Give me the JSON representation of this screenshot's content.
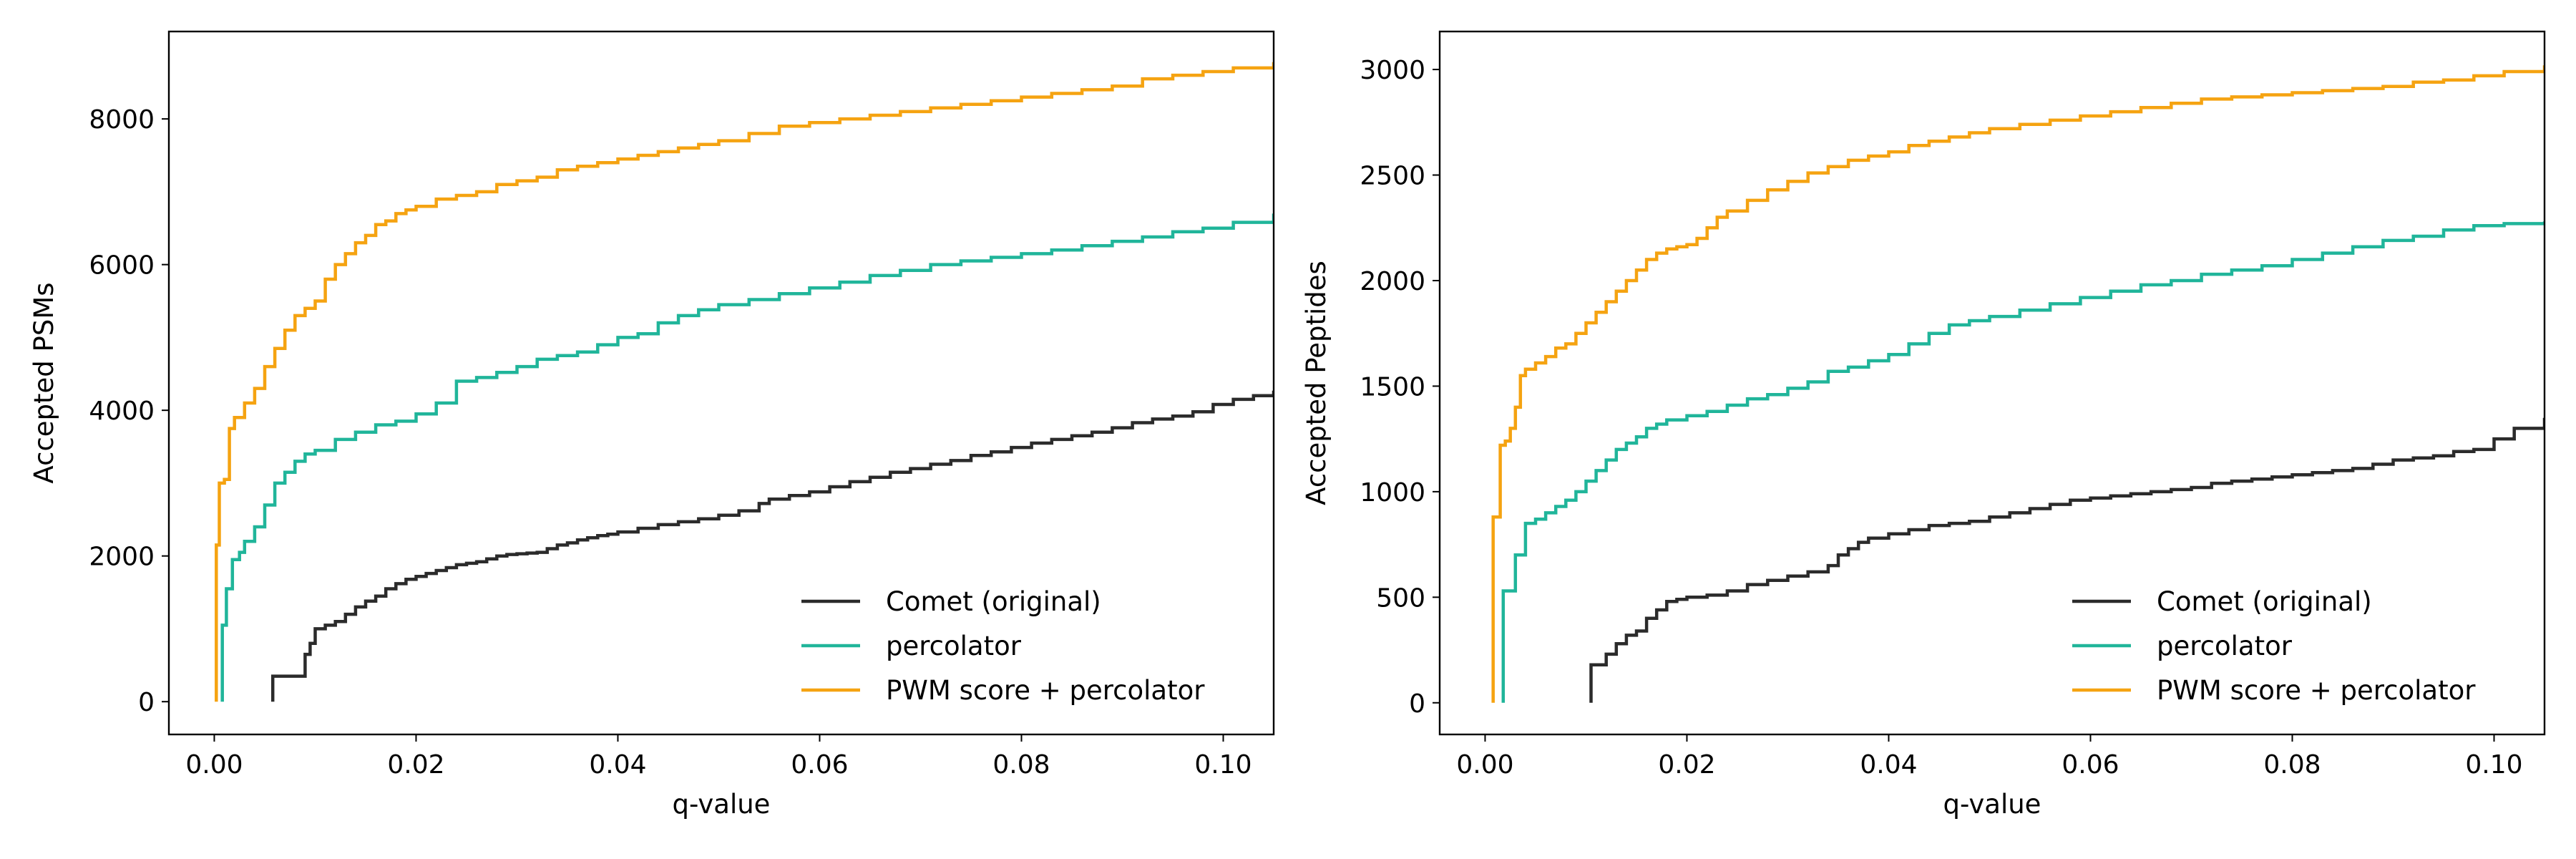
{
  "colors": {
    "comet": "#2b2b2b",
    "percolator": "#20b59a",
    "pwm": "#f5a311"
  },
  "chart_data": [
    {
      "type": "line",
      "title": "",
      "xlabel": "q-value",
      "ylabel": "Accepted PSMs",
      "xlim": [
        -0.0045,
        0.105
      ],
      "ylim": [
        -450,
        9200
      ],
      "xticks": [
        0.0,
        0.02,
        0.04,
        0.06,
        0.08,
        0.1
      ],
      "xtick_labels": [
        "0.00",
        "0.02",
        "0.04",
        "0.06",
        "0.08",
        "0.10"
      ],
      "yticks": [
        0,
        2000,
        4000,
        6000,
        8000
      ],
      "ytick_labels": [
        "0",
        "2000",
        "4000",
        "6000",
        "8000"
      ],
      "grid": false,
      "legend_position": "lower-right",
      "series": [
        {
          "name": "Comet (original)",
          "color_key": "comet",
          "step": true,
          "x": [
            0.0058,
            0.0058,
            0.0085,
            0.009,
            0.0095,
            0.01,
            0.011,
            0.012,
            0.013,
            0.014,
            0.015,
            0.016,
            0.017,
            0.018,
            0.019,
            0.02,
            0.021,
            0.022,
            0.023,
            0.024,
            0.025,
            0.026,
            0.027,
            0.028,
            0.029,
            0.03,
            0.031,
            0.032,
            0.033,
            0.034,
            0.035,
            0.036,
            0.037,
            0.038,
            0.039,
            0.04,
            0.042,
            0.044,
            0.046,
            0.048,
            0.05,
            0.052,
            0.054,
            0.055,
            0.057,
            0.059,
            0.061,
            0.063,
            0.065,
            0.067,
            0.069,
            0.071,
            0.073,
            0.075,
            0.077,
            0.079,
            0.081,
            0.083,
            0.085,
            0.087,
            0.089,
            0.091,
            0.093,
            0.095,
            0.097,
            0.099,
            0.101,
            0.103,
            0.105
          ],
          "y": [
            0,
            350,
            350,
            650,
            800,
            1000,
            1050,
            1100,
            1200,
            1300,
            1380,
            1450,
            1550,
            1620,
            1680,
            1720,
            1760,
            1800,
            1840,
            1880,
            1900,
            1920,
            1960,
            2000,
            2020,
            2030,
            2040,
            2050,
            2100,
            2150,
            2180,
            2220,
            2250,
            2280,
            2300,
            2330,
            2380,
            2430,
            2470,
            2510,
            2560,
            2620,
            2720,
            2780,
            2830,
            2880,
            2950,
            3020,
            3080,
            3150,
            3200,
            3260,
            3310,
            3380,
            3430,
            3490,
            3550,
            3600,
            3650,
            3700,
            3760,
            3830,
            3880,
            3920,
            3980,
            4080,
            4150,
            4200,
            4270
          ]
        },
        {
          "name": "percolator",
          "color_key": "percolator",
          "step": true,
          "x": [
            0.0008,
            0.0008,
            0.0012,
            0.0018,
            0.0025,
            0.003,
            0.004,
            0.005,
            0.006,
            0.007,
            0.008,
            0.009,
            0.01,
            0.012,
            0.014,
            0.016,
            0.018,
            0.02,
            0.022,
            0.024,
            0.026,
            0.028,
            0.03,
            0.032,
            0.034,
            0.036,
            0.038,
            0.04,
            0.042,
            0.044,
            0.046,
            0.048,
            0.05,
            0.053,
            0.056,
            0.059,
            0.062,
            0.065,
            0.068,
            0.071,
            0.074,
            0.077,
            0.08,
            0.083,
            0.086,
            0.089,
            0.092,
            0.095,
            0.098,
            0.101,
            0.105
          ],
          "y": [
            0,
            1050,
            1550,
            1950,
            2050,
            2200,
            2400,
            2700,
            3000,
            3150,
            3300,
            3400,
            3450,
            3600,
            3700,
            3800,
            3850,
            3950,
            4100,
            4400,
            4450,
            4520,
            4600,
            4700,
            4750,
            4800,
            4900,
            5000,
            5050,
            5200,
            5300,
            5380,
            5450,
            5520,
            5600,
            5680,
            5760,
            5850,
            5920,
            6000,
            6050,
            6100,
            6150,
            6200,
            6260,
            6320,
            6380,
            6450,
            6500,
            6580,
            6700
          ]
        },
        {
          "name": "PWM score + percolator",
          "color_key": "pwm",
          "step": true,
          "x": [
            0.0002,
            0.0002,
            0.0005,
            0.001,
            0.0015,
            0.002,
            0.003,
            0.004,
            0.005,
            0.006,
            0.007,
            0.008,
            0.009,
            0.01,
            0.011,
            0.012,
            0.013,
            0.014,
            0.015,
            0.016,
            0.017,
            0.018,
            0.019,
            0.02,
            0.022,
            0.024,
            0.026,
            0.028,
            0.03,
            0.032,
            0.034,
            0.036,
            0.038,
            0.04,
            0.042,
            0.044,
            0.046,
            0.048,
            0.05,
            0.053,
            0.056,
            0.059,
            0.062,
            0.065,
            0.068,
            0.071,
            0.074,
            0.077,
            0.08,
            0.083,
            0.086,
            0.089,
            0.092,
            0.095,
            0.098,
            0.101,
            0.105
          ],
          "y": [
            0,
            2150,
            3000,
            3050,
            3750,
            3900,
            4100,
            4300,
            4600,
            4850,
            5100,
            5300,
            5400,
            5500,
            5800,
            6000,
            6150,
            6300,
            6400,
            6550,
            6600,
            6700,
            6750,
            6800,
            6900,
            6950,
            7000,
            7100,
            7150,
            7200,
            7300,
            7350,
            7400,
            7450,
            7500,
            7550,
            7600,
            7650,
            7700,
            7800,
            7900,
            7950,
            8000,
            8050,
            8100,
            8150,
            8200,
            8250,
            8300,
            8350,
            8400,
            8450,
            8550,
            8600,
            8650,
            8700,
            8780
          ]
        }
      ]
    },
    {
      "type": "line",
      "title": "",
      "xlabel": "q-value",
      "ylabel": "Accepted Peptides",
      "xlim": [
        -0.0045,
        0.105
      ],
      "ylim": [
        -150,
        3180
      ],
      "xticks": [
        0.0,
        0.02,
        0.04,
        0.06,
        0.08,
        0.1
      ],
      "xtick_labels": [
        "0.00",
        "0.02",
        "0.04",
        "0.06",
        "0.08",
        "0.10"
      ],
      "yticks": [
        0,
        500,
        1000,
        1500,
        2000,
        2500,
        3000
      ],
      "ytick_labels": [
        "0",
        "500",
        "1000",
        "1500",
        "2000",
        "2500",
        "3000"
      ],
      "grid": false,
      "legend_position": "lower-right",
      "series": [
        {
          "name": "Comet (original)",
          "color_key": "comet",
          "step": true,
          "x": [
            0.0105,
            0.0105,
            0.012,
            0.013,
            0.014,
            0.015,
            0.016,
            0.017,
            0.018,
            0.019,
            0.02,
            0.022,
            0.024,
            0.026,
            0.028,
            0.03,
            0.032,
            0.034,
            0.035,
            0.036,
            0.037,
            0.038,
            0.04,
            0.042,
            0.044,
            0.046,
            0.048,
            0.05,
            0.052,
            0.054,
            0.056,
            0.058,
            0.06,
            0.062,
            0.064,
            0.066,
            0.068,
            0.07,
            0.072,
            0.074,
            0.076,
            0.078,
            0.08,
            0.082,
            0.084,
            0.086,
            0.088,
            0.09,
            0.092,
            0.094,
            0.096,
            0.098,
            0.1,
            0.102,
            0.105
          ],
          "y": [
            0,
            180,
            230,
            280,
            320,
            340,
            400,
            440,
            480,
            490,
            500,
            510,
            530,
            560,
            580,
            600,
            620,
            650,
            700,
            730,
            760,
            780,
            800,
            820,
            840,
            850,
            860,
            880,
            900,
            920,
            940,
            960,
            970,
            980,
            990,
            1000,
            1010,
            1020,
            1040,
            1050,
            1060,
            1070,
            1080,
            1090,
            1100,
            1110,
            1130,
            1150,
            1160,
            1170,
            1190,
            1200,
            1250,
            1300,
            1350
          ]
        },
        {
          "name": "percolator",
          "color_key": "percolator",
          "step": true,
          "x": [
            0.0018,
            0.0018,
            0.003,
            0.004,
            0.005,
            0.006,
            0.007,
            0.008,
            0.009,
            0.01,
            0.011,
            0.012,
            0.013,
            0.014,
            0.015,
            0.016,
            0.017,
            0.018,
            0.02,
            0.022,
            0.024,
            0.026,
            0.028,
            0.03,
            0.032,
            0.034,
            0.036,
            0.038,
            0.04,
            0.042,
            0.044,
            0.046,
            0.048,
            0.05,
            0.053,
            0.056,
            0.059,
            0.062,
            0.065,
            0.068,
            0.071,
            0.074,
            0.077,
            0.08,
            0.083,
            0.086,
            0.089,
            0.092,
            0.095,
            0.098,
            0.101,
            0.105
          ],
          "y": [
            0,
            530,
            700,
            850,
            870,
            900,
            930,
            960,
            1000,
            1050,
            1100,
            1150,
            1200,
            1230,
            1260,
            1300,
            1320,
            1340,
            1360,
            1380,
            1410,
            1440,
            1460,
            1490,
            1520,
            1570,
            1590,
            1620,
            1650,
            1700,
            1750,
            1790,
            1810,
            1830,
            1860,
            1890,
            1920,
            1950,
            1980,
            2000,
            2030,
            2050,
            2070,
            2100,
            2130,
            2160,
            2190,
            2210,
            2240,
            2260,
            2270,
            2280
          ]
        },
        {
          "name": "PWM score + percolator",
          "color_key": "pwm",
          "step": true,
          "x": [
            0.0008,
            0.0008,
            0.0015,
            0.002,
            0.0025,
            0.003,
            0.0035,
            0.004,
            0.005,
            0.006,
            0.007,
            0.008,
            0.009,
            0.01,
            0.011,
            0.012,
            0.013,
            0.014,
            0.015,
            0.016,
            0.017,
            0.018,
            0.019,
            0.02,
            0.021,
            0.022,
            0.023,
            0.024,
            0.026,
            0.028,
            0.03,
            0.032,
            0.034,
            0.036,
            0.038,
            0.04,
            0.042,
            0.044,
            0.046,
            0.048,
            0.05,
            0.053,
            0.056,
            0.059,
            0.062,
            0.065,
            0.068,
            0.071,
            0.074,
            0.077,
            0.08,
            0.083,
            0.086,
            0.089,
            0.092,
            0.095,
            0.098,
            0.101,
            0.105
          ],
          "y": [
            0,
            880,
            1220,
            1240,
            1300,
            1400,
            1550,
            1580,
            1610,
            1640,
            1680,
            1700,
            1750,
            1800,
            1850,
            1900,
            1950,
            2000,
            2050,
            2100,
            2130,
            2150,
            2160,
            2170,
            2200,
            2250,
            2300,
            2330,
            2380,
            2430,
            2470,
            2510,
            2540,
            2570,
            2590,
            2610,
            2640,
            2660,
            2680,
            2700,
            2720,
            2740,
            2760,
            2780,
            2800,
            2820,
            2840,
            2860,
            2870,
            2880,
            2890,
            2900,
            2910,
            2920,
            2940,
            2950,
            2970,
            2990,
            3020
          ]
        }
      ]
    }
  ]
}
